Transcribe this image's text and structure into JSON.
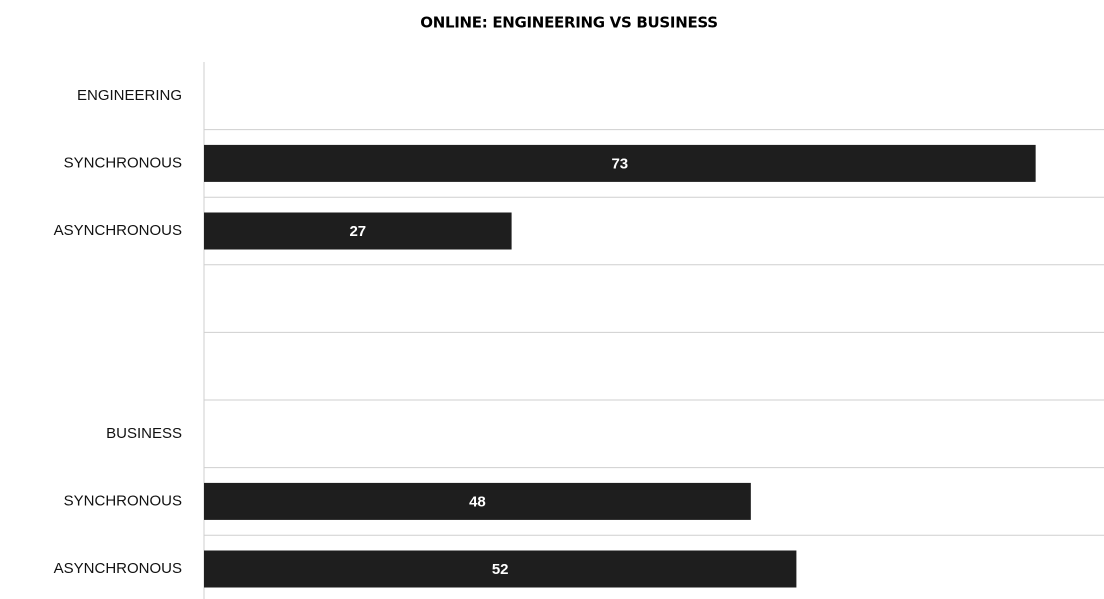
{
  "chart_data": {
    "type": "hbar",
    "title": "ONLINE: ENGINEERING VS BUSINESS",
    "categories": [
      "ENGINEERING",
      "SYNCHRONOUS",
      "ASYNCHRONOUS",
      null,
      null,
      "BUSINESS",
      "SYNCHRONOUS",
      "ASYNCHRONOUS"
    ],
    "values": [
      null,
      73,
      27,
      null,
      null,
      null,
      48,
      52
    ],
    "color": "#1e1e1e",
    "xlim": [
      0,
      79
    ],
    "grid": true
  }
}
